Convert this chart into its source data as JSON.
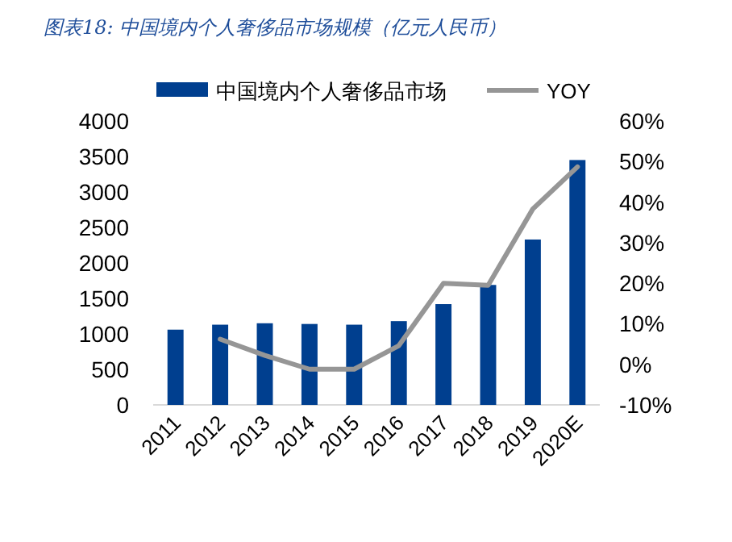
{
  "chart_data": {
    "type": "bar",
    "title": "图表18:  中国境内个人奢侈品市场规模（亿元人民币）",
    "categories": [
      "2011",
      "2012",
      "2013",
      "2014",
      "2015",
      "2016",
      "2017",
      "2018",
      "2019",
      "2020E"
    ],
    "series": [
      {
        "name": "中国境内个人奢侈品市场",
        "color": "#003f8f",
        "values": [
          1060,
          1130,
          1150,
          1140,
          1130,
          1180,
          1420,
          1690,
          2330,
          3450
        ]
      },
      {
        "name": "YOY",
        "type": "line",
        "axis": "y2",
        "color": "#969696",
        "values": [
          null,
          6.2,
          2.2,
          -1.2,
          -1.2,
          4.6,
          20,
          19.5,
          38.3,
          48.7
        ]
      }
    ],
    "ylim": [
      0,
      4000
    ],
    "yticks": [
      0,
      500,
      1000,
      1500,
      2000,
      2500,
      3000,
      3500,
      4000
    ],
    "y2lim": [
      -10,
      60
    ],
    "y2ticks": [
      {
        "value": -10,
        "label": "-10%"
      },
      {
        "value": 0,
        "label": "0%"
      },
      {
        "value": 10,
        "label": "10%"
      },
      {
        "value": 20,
        "label": "20%"
      },
      {
        "value": 30,
        "label": "30%"
      },
      {
        "value": 40,
        "label": "40%"
      },
      {
        "value": 50,
        "label": "50%"
      },
      {
        "value": 60,
        "label": "60%"
      }
    ],
    "legend": "top",
    "grid": false
  }
}
